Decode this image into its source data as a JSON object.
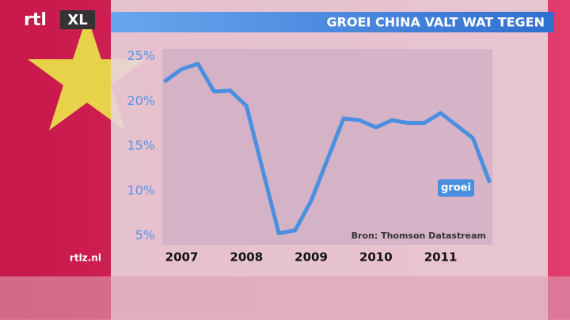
{
  "logo": {
    "brand": "rtl",
    "channel": "XL"
  },
  "site": "rtlz.nl",
  "chart_data": {
    "type": "line",
    "title": "GROEI CHINA VALT WAT TEGEN",
    "source": "Bron: Thomson Datastream",
    "x": [
      2006.75,
      2007,
      2007.25,
      2007.5,
      2007.75,
      2008,
      2008.5,
      2008.75,
      2009,
      2009.5,
      2009.75,
      2010,
      2010.25,
      2010.5,
      2010.75,
      2011,
      2011.5,
      2011.75
    ],
    "series": [
      {
        "name": "groei",
        "color": "#4a8fe0",
        "values": [
          22.3,
          23.6,
          24.2,
          21.1,
          21.2,
          19.5,
          5.3,
          5.6,
          8.9,
          18.1,
          17.9,
          17.1,
          17.9,
          17.6,
          17.6,
          18.7,
          15.9,
          11.1
        ]
      }
    ],
    "xlim": [
      2006.7,
      2011.8
    ],
    "xticks": [
      2007,
      2008,
      2009,
      2010,
      2011
    ],
    "ylim": [
      4,
      25.5
    ],
    "yticks": [
      {
        "value": 5,
        "label": "5%"
      },
      {
        "value": 10,
        "label": "10%"
      },
      {
        "value": 15,
        "label": "15%"
      },
      {
        "value": 20,
        "label": "20%"
      },
      {
        "value": 25,
        "label": "25%"
      }
    ]
  }
}
